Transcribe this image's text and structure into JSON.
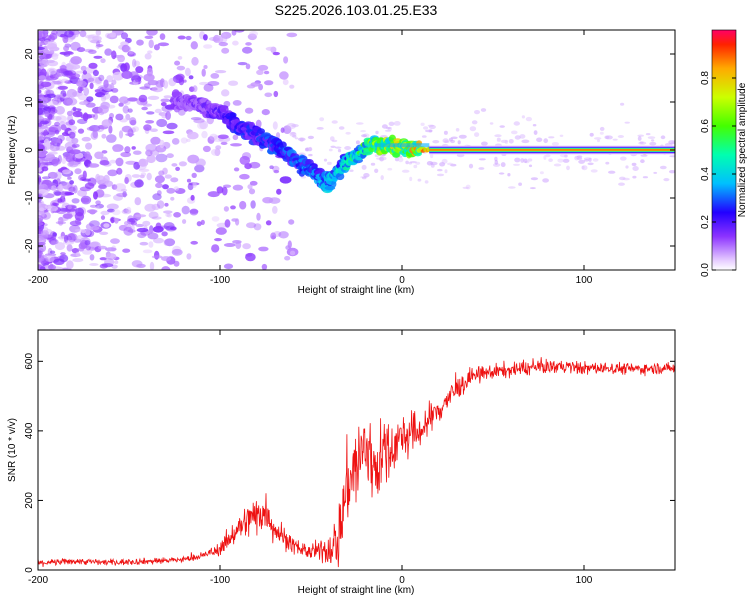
{
  "title": "S225.2026.103.01.25.E33",
  "chart_data": [
    {
      "type": "heatmap",
      "name": "spectrogram",
      "xlabel": "Height of straight line (km)",
      "ylabel": "Frequency (Hz)",
      "xlim": [
        -200,
        150
      ],
      "ylim": [
        -25,
        25
      ],
      "xticks": [
        -200,
        -100,
        0,
        100
      ],
      "yticks": [
        -20,
        -10,
        0,
        10,
        20
      ],
      "colorbar": {
        "label": "Normalized spectral amplitude",
        "range": [
          0.0,
          1.0
        ],
        "ticks": [
          0.0,
          0.2,
          0.4,
          0.6,
          0.8
        ]
      },
      "ridge": [
        {
          "x": -115,
          "y": 10,
          "a": 0.15
        },
        {
          "x": -100,
          "y": 8,
          "a": 0.2
        },
        {
          "x": -90,
          "y": 5,
          "a": 0.25
        },
        {
          "x": -80,
          "y": 3,
          "a": 0.25
        },
        {
          "x": -70,
          "y": 1,
          "a": 0.3
        },
        {
          "x": -60,
          "y": -2,
          "a": 0.3
        },
        {
          "x": -50,
          "y": -4,
          "a": 0.35
        },
        {
          "x": -40,
          "y": -7,
          "a": 0.4
        },
        {
          "x": -33,
          "y": -3,
          "a": 0.45
        },
        {
          "x": -25,
          "y": -1,
          "a": 0.5
        },
        {
          "x": -18,
          "y": 1,
          "a": 0.6
        },
        {
          "x": -10,
          "y": 1,
          "a": 0.7
        },
        {
          "x": 0,
          "y": 0.5,
          "a": 0.75
        },
        {
          "x": 15,
          "y": 0,
          "a": 0.9
        },
        {
          "x": 50,
          "y": 0,
          "a": 0.9
        },
        {
          "x": 100,
          "y": 0,
          "a": 0.85
        },
        {
          "x": 150,
          "y": 0,
          "a": 0.85
        }
      ]
    },
    {
      "type": "line",
      "name": "snr",
      "xlabel": "Height of straight line (km)",
      "ylabel": "SNR (10 * v/v)",
      "xlim": [
        -200,
        150
      ],
      "ylim": [
        0,
        690
      ],
      "xticks": [
        -200,
        -100,
        0,
        100
      ],
      "yticks": [
        0,
        200,
        400,
        600
      ],
      "color": "#ee1111",
      "series": [
        {
          "name": "SNR",
          "points": [
            [
              -200,
              20
            ],
            [
              -180,
              25
            ],
            [
              -160,
              22
            ],
            [
              -140,
              25
            ],
            [
              -120,
              30
            ],
            [
              -110,
              40
            ],
            [
              -100,
              60
            ],
            [
              -90,
              120
            ],
            [
              -80,
              160
            ],
            [
              -75,
              170
            ],
            [
              -70,
              120
            ],
            [
              -60,
              70
            ],
            [
              -50,
              50
            ],
            [
              -40,
              60
            ],
            [
              -35,
              90
            ],
            [
              -30,
              250
            ],
            [
              -25,
              300
            ],
            [
              -20,
              350
            ],
            [
              -15,
              300
            ],
            [
              -10,
              330
            ],
            [
              -5,
              360
            ],
            [
              0,
              380
            ],
            [
              10,
              400
            ],
            [
              20,
              460
            ],
            [
              30,
              520
            ],
            [
              40,
              560
            ],
            [
              50,
              570
            ],
            [
              60,
              575
            ],
            [
              70,
              580
            ],
            [
              80,
              585
            ],
            [
              90,
              585
            ],
            [
              100,
              580
            ],
            [
              110,
              580
            ],
            [
              120,
              580
            ],
            [
              130,
              578
            ],
            [
              140,
              580
            ],
            [
              150,
              580
            ]
          ],
          "noise": [
            [
              -200,
              12
            ],
            [
              -110,
              12
            ],
            [
              -100,
              25
            ],
            [
              -90,
              55
            ],
            [
              -80,
              80
            ],
            [
              -70,
              60
            ],
            [
              -60,
              30
            ],
            [
              -50,
              30
            ],
            [
              -40,
              60
            ],
            [
              -35,
              120
            ],
            [
              -30,
              160
            ],
            [
              -20,
              200
            ],
            [
              -10,
              130
            ],
            [
              0,
              90
            ],
            [
              20,
              60
            ],
            [
              40,
              30
            ],
            [
              150,
              20
            ]
          ]
        }
      ]
    }
  ]
}
